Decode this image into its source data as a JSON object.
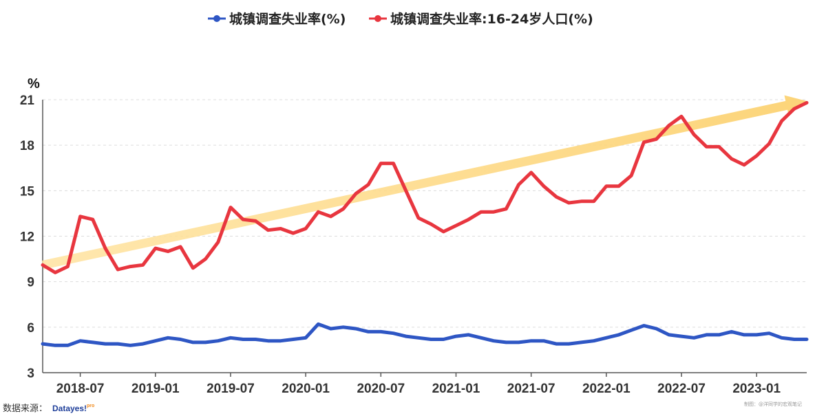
{
  "legend": [
    {
      "label": "城镇调查失业率(%)",
      "color": "#2e56c4"
    },
    {
      "label": "城镇调查失业率:16-24岁人口(%)",
      "color": "#e8363f"
    }
  ],
  "source": {
    "label": "数据来源：",
    "brand_main": "Datayes!",
    "brand_sup": "pro",
    "brand_colors": [
      "#1f3f9a",
      "#f08a1c"
    ]
  },
  "credit": "制图：@洋同学的宏观笔记",
  "chart_data": {
    "type": "line",
    "ylabel": "%",
    "ylim": [
      3,
      21
    ],
    "yticks": [
      3,
      6,
      9,
      12,
      15,
      18,
      21
    ],
    "grid": true,
    "legend_position": "top",
    "x": [
      "2018-04",
      "2018-05",
      "2018-06",
      "2018-07",
      "2018-08",
      "2018-09",
      "2018-10",
      "2018-11",
      "2018-12",
      "2019-01",
      "2019-02",
      "2019-03",
      "2019-04",
      "2019-05",
      "2019-06",
      "2019-07",
      "2019-08",
      "2019-09",
      "2019-10",
      "2019-11",
      "2019-12",
      "2020-01",
      "2020-02",
      "2020-03",
      "2020-04",
      "2020-05",
      "2020-06",
      "2020-07",
      "2020-08",
      "2020-09",
      "2020-10",
      "2020-11",
      "2020-12",
      "2021-01",
      "2021-02",
      "2021-03",
      "2021-04",
      "2021-05",
      "2021-06",
      "2021-07",
      "2021-08",
      "2021-09",
      "2021-10",
      "2021-11",
      "2021-12",
      "2022-01",
      "2022-02",
      "2022-03",
      "2022-04",
      "2022-05",
      "2022-06",
      "2022-07",
      "2022-08",
      "2022-09",
      "2022-10",
      "2022-11",
      "2022-12",
      "2023-01",
      "2023-02",
      "2023-03",
      "2023-04",
      "2023-05"
    ],
    "xtick_labels": [
      "2018-07",
      "2019-01",
      "2019-07",
      "2020-01",
      "2020-07",
      "2021-01",
      "2021-07",
      "2022-01",
      "2022-07",
      "2023-01"
    ],
    "series": [
      {
        "name": "城镇调查失业率(%)",
        "color": "#2e56c4",
        "values": [
          4.9,
          4.8,
          4.8,
          5.1,
          5.0,
          4.9,
          4.9,
          4.8,
          4.9,
          5.1,
          5.3,
          5.2,
          5.0,
          5.0,
          5.1,
          5.3,
          5.2,
          5.2,
          5.1,
          5.1,
          5.2,
          5.3,
          6.2,
          5.9,
          6.0,
          5.9,
          5.7,
          5.7,
          5.6,
          5.4,
          5.3,
          5.2,
          5.2,
          5.4,
          5.5,
          5.3,
          5.1,
          5.0,
          5.0,
          5.1,
          5.1,
          4.9,
          4.9,
          5.0,
          5.1,
          5.3,
          5.5,
          5.8,
          6.1,
          5.9,
          5.5,
          5.4,
          5.3,
          5.5,
          5.5,
          5.7,
          5.5,
          5.5,
          5.6,
          5.3,
          5.2,
          5.2
        ]
      },
      {
        "name": "城镇调查失业率:16-24岁人口(%)",
        "color": "#e8363f",
        "values": [
          10.1,
          9.6,
          10.0,
          13.3,
          13.1,
          11.2,
          9.8,
          10.0,
          10.1,
          11.2,
          11.0,
          11.3,
          9.9,
          10.5,
          11.6,
          13.9,
          13.1,
          13.0,
          12.4,
          12.5,
          12.2,
          12.5,
          13.6,
          13.3,
          13.8,
          14.8,
          15.4,
          16.8,
          16.8,
          15.0,
          13.2,
          12.8,
          12.3,
          12.7,
          13.1,
          13.6,
          13.6,
          13.8,
          15.4,
          16.2,
          15.3,
          14.6,
          14.2,
          14.3,
          14.3,
          15.3,
          15.3,
          16.0,
          18.2,
          18.4,
          19.3,
          19.9,
          18.7,
          17.9,
          17.9,
          17.1,
          16.7,
          17.3,
          18.1,
          19.6,
          20.4,
          20.8
        ]
      }
    ]
  }
}
